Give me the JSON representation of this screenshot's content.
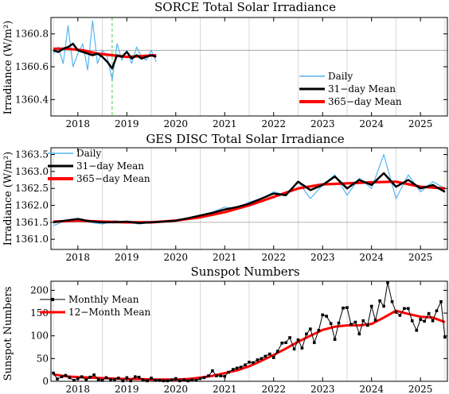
{
  "panels": [
    {
      "title": "SORCE Total Solar Irradiance",
      "ylabel": "Irradiance (W/m²)",
      "yticks": [
        "1360.8",
        "1360.6",
        "1360.4"
      ],
      "xticks": [
        "2018",
        "2019",
        "2020",
        "2021",
        "2022",
        "2023",
        "2024",
        "2025"
      ],
      "legend": [
        "Daily",
        "31−day Mean",
        "365−day Mean"
      ]
    },
    {
      "title": "GES DISC Total Solar Irradiance",
      "ylabel": "Irradiance (W/m²)",
      "yticks": [
        "1363.5",
        "1363.0",
        "1362.5",
        "1362.0",
        "1361.5",
        "1361.0"
      ],
      "xticks": [
        "2018",
        "2019",
        "2020",
        "2021",
        "2022",
        "2023",
        "2024",
        "2025"
      ],
      "legend": [
        "Daily",
        "31−day Mean",
        "365−day Mean"
      ]
    },
    {
      "title": "Sunspot Numbers",
      "ylabel": "Sunspot Numbers",
      "yticks": [
        "200",
        "150",
        "100",
        "50",
        "0"
      ],
      "xticks": [
        "2018",
        "2019",
        "2020",
        "2021",
        "2022",
        "2023",
        "2024",
        "2025"
      ],
      "legend": [
        "Monthly Mean",
        "12−Month Mean"
      ]
    }
  ],
  "chart_data": [
    {
      "type": "line",
      "title": "SORCE Total Solar Irradiance",
      "xlabel": "",
      "ylabel": "Irradiance (W/m²)",
      "xlim": [
        2017.45,
        2025.55
      ],
      "ylim": [
        1360.3,
        1360.9
      ],
      "grid": true,
      "legend_position": "bottom-right",
      "reference_line_y": 1360.7,
      "colors": {
        "daily": "#56b4f0",
        "mean31": "#000000",
        "mean365": "#ff0000",
        "marker": "#88d888"
      },
      "series": [
        {
          "name": "Daily",
          "x": [
            2017.5,
            2017.6,
            2017.7,
            2017.8,
            2017.9,
            2018.0,
            2018.1,
            2018.2,
            2018.3,
            2018.4,
            2018.5,
            2018.6,
            2018.7,
            2018.8,
            2018.9,
            2019.0,
            2019.1,
            2019.2,
            2019.3,
            2019.4,
            2019.5,
            2019.6
          ],
          "y": [
            1360.68,
            1360.72,
            1360.62,
            1360.85,
            1360.6,
            1360.68,
            1360.74,
            1360.58,
            1360.88,
            1360.62,
            1360.7,
            1360.66,
            1360.52,
            1360.74,
            1360.64,
            1360.7,
            1360.62,
            1360.72,
            1360.66,
            1360.64,
            1360.7,
            1360.63
          ]
        },
        {
          "name": "31−day Mean",
          "x": [
            2017.5,
            2017.6,
            2017.7,
            2017.8,
            2017.9,
            2018.0,
            2018.1,
            2018.2,
            2018.3,
            2018.4,
            2018.5,
            2018.6,
            2018.7,
            2018.8,
            2018.9,
            2019.0,
            2019.1,
            2019.2,
            2019.3,
            2019.4,
            2019.5,
            2019.6
          ],
          "y": [
            1360.7,
            1360.69,
            1360.71,
            1360.72,
            1360.74,
            1360.7,
            1360.69,
            1360.68,
            1360.67,
            1360.68,
            1360.66,
            1360.63,
            1360.59,
            1360.67,
            1360.66,
            1360.69,
            1360.65,
            1360.67,
            1360.65,
            1360.66,
            1360.67,
            1360.66
          ]
        },
        {
          "name": "365−day Mean",
          "x": [
            2017.5,
            2017.8,
            2018.1,
            2018.4,
            2018.7,
            2019.0,
            2019.3,
            2019.6
          ],
          "y": [
            1360.71,
            1360.71,
            1360.7,
            1360.68,
            1360.67,
            1360.66,
            1360.665,
            1360.67
          ]
        }
      ],
      "vertical_marker_x": 2018.7
    },
    {
      "type": "line",
      "title": "GES DISC Total Solar Irradiance",
      "xlabel": "",
      "ylabel": "Irradiance (W/m²)",
      "xlim": [
        2017.45,
        2025.55
      ],
      "ylim": [
        1360.7,
        1363.7
      ],
      "grid": true,
      "legend_position": "top-left",
      "reference_line_y": 1361.5,
      "colors": {
        "daily": "#56b4f0",
        "mean31": "#000000",
        "mean365": "#ff0000"
      },
      "series": [
        {
          "name": "Daily",
          "x": [
            2017.5,
            2017.75,
            2018.0,
            2018.25,
            2018.5,
            2018.75,
            2019.0,
            2019.25,
            2019.5,
            2019.75,
            2020.0,
            2020.25,
            2020.5,
            2020.75,
            2021.0,
            2021.25,
            2021.5,
            2021.75,
            2022.0,
            2022.25,
            2022.5,
            2022.75,
            2023.0,
            2023.25,
            2023.5,
            2023.75,
            2024.0,
            2024.25,
            2024.5,
            2024.75,
            2025.0,
            2025.25,
            2025.5
          ],
          "y": [
            1361.4,
            1361.55,
            1361.6,
            1361.5,
            1361.45,
            1361.55,
            1361.5,
            1361.45,
            1361.5,
            1361.5,
            1361.55,
            1361.6,
            1361.7,
            1361.8,
            1361.95,
            1361.9,
            1362.1,
            1362.2,
            1362.4,
            1362.3,
            1362.7,
            1362.2,
            1362.6,
            1362.9,
            1362.3,
            1362.8,
            1362.5,
            1363.5,
            1362.2,
            1362.9,
            1362.4,
            1362.7,
            1362.5
          ]
        },
        {
          "name": "31−day Mean",
          "x": [
            2017.5,
            2017.75,
            2018.0,
            2018.25,
            2018.5,
            2018.75,
            2019.0,
            2019.25,
            2019.5,
            2019.75,
            2020.0,
            2020.25,
            2020.5,
            2020.75,
            2021.0,
            2021.25,
            2021.5,
            2021.75,
            2022.0,
            2022.25,
            2022.5,
            2022.75,
            2023.0,
            2023.25,
            2023.5,
            2023.75,
            2024.0,
            2024.25,
            2024.5,
            2024.75,
            2025.0,
            2025.25,
            2025.5
          ],
          "y": [
            1361.5,
            1361.55,
            1361.6,
            1361.53,
            1361.5,
            1361.5,
            1361.52,
            1361.48,
            1361.5,
            1361.52,
            1361.55,
            1361.62,
            1361.7,
            1361.78,
            1361.88,
            1361.95,
            1362.05,
            1362.2,
            1362.35,
            1362.3,
            1362.7,
            1362.45,
            1362.6,
            1362.85,
            1362.5,
            1362.75,
            1362.6,
            1362.95,
            1362.55,
            1362.75,
            1362.5,
            1362.6,
            1362.4
          ]
        },
        {
          "name": "365−day Mean",
          "x": [
            2017.5,
            2018.0,
            2018.5,
            2019.0,
            2019.5,
            2020.0,
            2020.5,
            2021.0,
            2021.5,
            2022.0,
            2022.5,
            2023.0,
            2023.5,
            2024.0,
            2024.5,
            2025.0,
            2025.5
          ],
          "y": [
            1361.52,
            1361.55,
            1361.52,
            1361.5,
            1361.5,
            1361.55,
            1361.65,
            1361.8,
            1362.0,
            1362.25,
            1362.5,
            1362.62,
            1362.65,
            1362.68,
            1362.7,
            1362.55,
            1362.5
          ]
        }
      ]
    },
    {
      "type": "line",
      "title": "Sunspot Numbers",
      "xlabel": "",
      "ylabel": "Sunspot Numbers",
      "xlim": [
        2017.45,
        2025.55
      ],
      "ylim": [
        0,
        220
      ],
      "grid": true,
      "legend_position": "top-left",
      "colors": {
        "monthly": "#000000",
        "mean12": "#ff0000"
      },
      "series": [
        {
          "name": "Monthly Mean",
          "x": [
            2017.5,
            2017.58,
            2017.67,
            2017.75,
            2017.83,
            2017.92,
            2018.0,
            2018.08,
            2018.17,
            2018.25,
            2018.33,
            2018.42,
            2018.5,
            2018.58,
            2018.67,
            2018.75,
            2018.83,
            2018.92,
            2019.0,
            2019.08,
            2019.17,
            2019.25,
            2019.33,
            2019.42,
            2019.5,
            2019.58,
            2019.67,
            2019.75,
            2019.83,
            2019.92,
            2020.0,
            2020.08,
            2020.17,
            2020.25,
            2020.33,
            2020.42,
            2020.5,
            2020.58,
            2020.67,
            2020.75,
            2020.83,
            2020.92,
            2021.0,
            2021.08,
            2021.17,
            2021.25,
            2021.33,
            2021.42,
            2021.5,
            2021.58,
            2021.67,
            2021.75,
            2021.83,
            2021.92,
            2022.0,
            2022.08,
            2022.17,
            2022.25,
            2022.33,
            2022.42,
            2022.5,
            2022.58,
            2022.67,
            2022.75,
            2022.83,
            2022.92,
            2023.0,
            2023.08,
            2023.17,
            2023.25,
            2023.33,
            2023.42,
            2023.5,
            2023.58,
            2023.67,
            2023.75,
            2023.83,
            2023.92,
            2024.0,
            2024.08,
            2024.17,
            2024.25,
            2024.33,
            2024.42,
            2024.5,
            2024.58,
            2024.67,
            2024.75,
            2024.83,
            2024.92,
            2025.0,
            2025.08,
            2025.17,
            2025.25,
            2025.33,
            2025.42,
            2025.5
          ],
          "y": [
            18,
            5,
            10,
            13,
            8,
            2,
            6,
            10,
            3,
            9,
            14,
            4,
            2,
            8,
            4,
            4,
            7,
            1,
            8,
            1,
            10,
            9,
            3,
            1,
            7,
            2,
            2,
            1,
            1,
            3,
            6,
            1,
            3,
            1,
            3,
            2,
            6,
            8,
            12,
            23,
            12,
            12,
            11,
            20,
            26,
            29,
            31,
            36,
            42,
            41,
            47,
            50,
            55,
            60,
            52,
            66,
            84,
            85,
            96,
            71,
            91,
            73,
            104,
            115,
            85,
            112,
            146,
            143,
            127,
            92,
            128,
            161,
            162,
            125,
            130,
            104,
            133,
            123,
            165,
            134,
            177,
            165,
            217,
            175,
            152,
            145,
            160,
            160,
            133,
            112,
            136,
            132,
            149,
            133,
            155,
            175,
            97
          ]
        },
        {
          "name": "12−Month Mean",
          "x": [
            2017.5,
            2017.75,
            2018.0,
            2018.25,
            2018.5,
            2018.75,
            2019.0,
            2019.25,
            2019.5,
            2019.75,
            2020.0,
            2020.25,
            2020.5,
            2020.75,
            2021.0,
            2021.25,
            2021.5,
            2021.75,
            2022.0,
            2022.25,
            2022.5,
            2022.75,
            2023.0,
            2023.25,
            2023.5,
            2023.75,
            2024.0,
            2024.25,
            2024.5,
            2024.75,
            2025.0,
            2025.25,
            2025.5
          ],
          "y": [
            15,
            11,
            9,
            8,
            7,
            6,
            5,
            5,
            4,
            4,
            4,
            5,
            8,
            12,
            18,
            24,
            33,
            45,
            58,
            72,
            87,
            100,
            113,
            120,
            123,
            123,
            126,
            140,
            155,
            148,
            142,
            140,
            130
          ]
        }
      ]
    }
  ]
}
